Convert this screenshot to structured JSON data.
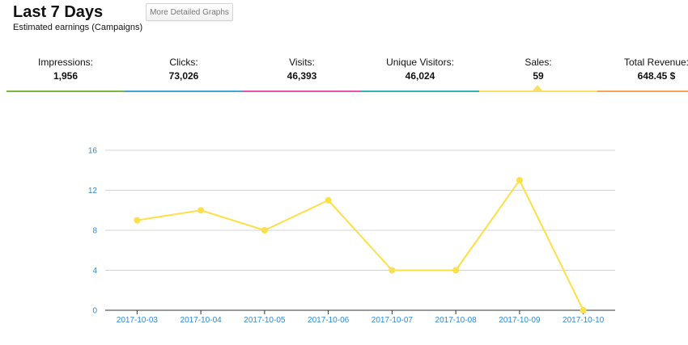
{
  "header": {
    "title": "Last 7 Days",
    "subtitle": "Estimated earnings (Campaigns)",
    "detail_button_label": "More Detailed Graphs"
  },
  "stats": [
    {
      "key": "impressions",
      "label": "Impressions:",
      "value": "1,956",
      "color": "#7cb342"
    },
    {
      "key": "clicks",
      "label": "Clicks:",
      "value": "73,026",
      "color": "#42a5d5"
    },
    {
      "key": "visits",
      "label": "Visits:",
      "value": "46,393",
      "color": "#e552a8"
    },
    {
      "key": "unique-visitors",
      "label": "Unique Visitors:",
      "value": "46,024",
      "color": "#36b2b2"
    },
    {
      "key": "sales",
      "label": "Sales:",
      "value": "59",
      "color": "#f5e166",
      "selected": true
    },
    {
      "key": "total-revenue",
      "label": "Total Revenue:",
      "value": "648.45 $",
      "color": "#f5a25a"
    }
  ],
  "chart_data": {
    "type": "line",
    "title": "",
    "xlabel": "",
    "ylabel": "",
    "categories": [
      "2017-10-03",
      "2017-10-04",
      "2017-10-05",
      "2017-10-06",
      "2017-10-07",
      "2017-10-08",
      "2017-10-09",
      "2017-10-10"
    ],
    "series": [
      {
        "values": [
          9,
          10,
          8,
          11,
          4,
          4,
          13,
          0
        ],
        "color": "#fbe04a"
      }
    ],
    "ylim": [
      0,
      16
    ],
    "yticks": [
      0,
      4,
      8,
      12,
      16
    ],
    "grid": true,
    "tick_color": "#2e8bd6",
    "grid_color": "#d4d4d4",
    "axis_color": "#333333"
  }
}
